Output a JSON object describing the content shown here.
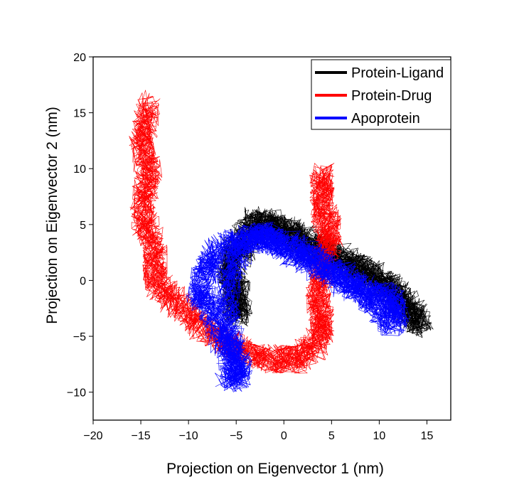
{
  "chart_data": {
    "type": "line",
    "title": "",
    "xlabel": "Projection on Eigenvector 1 (nm)",
    "ylabel": "Projection on Eigenvector 2 (nm)",
    "xlim": [
      -20,
      17.5
    ],
    "ylim": [
      -12.5,
      20
    ],
    "xticks": [
      -20,
      -15,
      -10,
      -5,
      0,
      5,
      10,
      15
    ],
    "yticks": [
      -10,
      -5,
      0,
      5,
      10,
      15,
      20
    ],
    "xtick_labels": [
      "−20",
      "−15",
      "−10",
      "−5",
      "0",
      "5",
      "10",
      "15"
    ],
    "ytick_labels": [
      "−10",
      "−5",
      "0",
      "5",
      "10",
      "15",
      "20"
    ],
    "grid": false,
    "legend_position": "top-right",
    "series": [
      {
        "name": "Protein-Ligand",
        "color": "#000000",
        "anchors": [
          [
            -6,
            0
          ],
          [
            -5.5,
            2
          ],
          [
            -4.5,
            4
          ],
          [
            -3,
            5.5
          ],
          [
            -1,
            5
          ],
          [
            1,
            4
          ],
          [
            2,
            3
          ],
          [
            4,
            2.5
          ],
          [
            6,
            1.5
          ],
          [
            8,
            1
          ],
          [
            10,
            0
          ],
          [
            11.5,
            -1
          ],
          [
            13,
            -2
          ],
          [
            14.5,
            -4
          ],
          [
            13,
            -3
          ],
          [
            11,
            -1
          ],
          [
            9,
            0.5
          ],
          [
            7,
            1.5
          ],
          [
            5,
            2.5
          ],
          [
            3,
            3.5
          ],
          [
            0,
            4.5
          ],
          [
            -2,
            5
          ],
          [
            -4,
            3.5
          ],
          [
            -5.5,
            1
          ],
          [
            -5.5,
            -1
          ],
          [
            -5,
            -3
          ],
          [
            -4.5,
            -2
          ],
          [
            -5,
            0
          ]
        ]
      },
      {
        "name": "Protein-Drug",
        "color": "#ff0000",
        "anchors": [
          [
            -14,
            16
          ],
          [
            -14.5,
            14
          ],
          [
            -15,
            12
          ],
          [
            -14,
            10
          ],
          [
            -14.5,
            8
          ],
          [
            -15,
            6
          ],
          [
            -14,
            4
          ],
          [
            -13.5,
            2
          ],
          [
            -13.5,
            0
          ],
          [
            -12,
            -1.5
          ],
          [
            -10,
            -3
          ],
          [
            -8,
            -4.5
          ],
          [
            -6,
            -5.5
          ],
          [
            -4,
            -6.5
          ],
          [
            -2,
            -7
          ],
          [
            0,
            -7
          ],
          [
            1.5,
            -7
          ],
          [
            3,
            -6
          ],
          [
            4,
            -4.5
          ],
          [
            4,
            -3
          ],
          [
            3.5,
            -1
          ],
          [
            4,
            1
          ],
          [
            4.5,
            3
          ],
          [
            5,
            4.5
          ],
          [
            4,
            6
          ],
          [
            4,
            8
          ],
          [
            4,
            9.5
          ]
        ]
      },
      {
        "name": "Apoprotein",
        "color": "#0000ff",
        "anchors": [
          [
            -5,
            -8
          ],
          [
            -6,
            -6
          ],
          [
            -7,
            -4
          ],
          [
            -8,
            -2
          ],
          [
            -9,
            -1
          ],
          [
            -8,
            1
          ],
          [
            -7,
            2.5
          ],
          [
            -5,
            3.5
          ],
          [
            -3,
            4
          ],
          [
            -1,
            3.5
          ],
          [
            1,
            3
          ],
          [
            3,
            2
          ],
          [
            5,
            1
          ],
          [
            7,
            0
          ],
          [
            9,
            -1
          ],
          [
            11,
            -1.5
          ],
          [
            12,
            -2.5
          ],
          [
            11.5,
            -4
          ],
          [
            10,
            -2.5
          ],
          [
            8,
            -1
          ],
          [
            6,
            0
          ],
          [
            4,
            1
          ],
          [
            2,
            2
          ],
          [
            0,
            3
          ],
          [
            -2,
            4
          ],
          [
            -4,
            3.5
          ],
          [
            -5.5,
            1
          ],
          [
            -6,
            -2
          ],
          [
            -5.5,
            -5
          ],
          [
            -5,
            -7
          ],
          [
            -4.5,
            -8.5
          ],
          [
            -6,
            -9
          ]
        ]
      }
    ]
  }
}
